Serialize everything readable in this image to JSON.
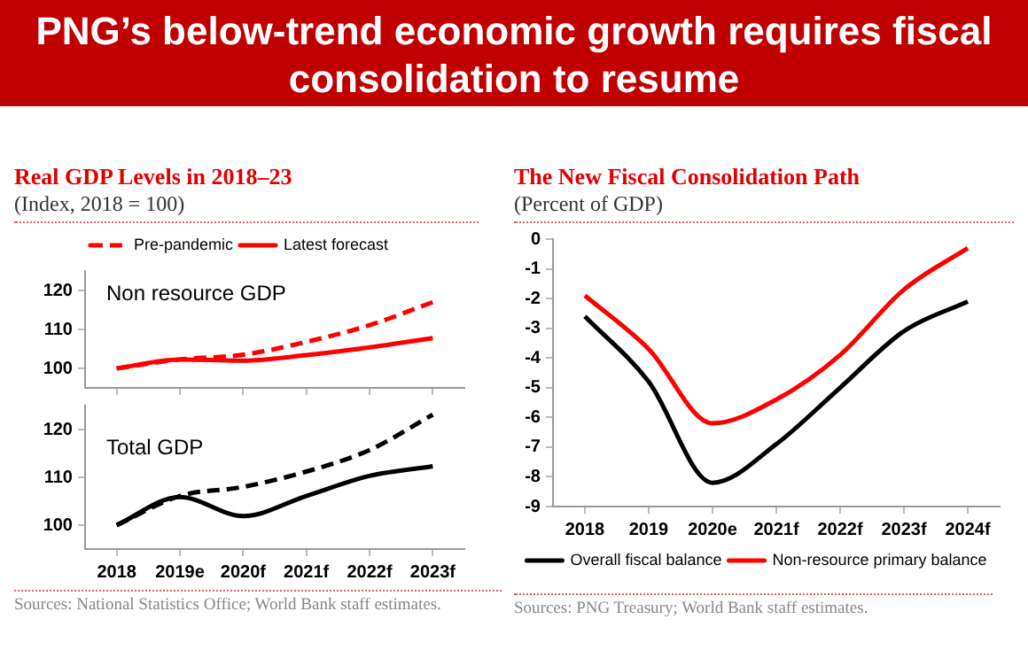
{
  "chart_data": [
    {
      "type": "other",
      "title": "PNG’s below-trend economic growth requires fiscal consolidation to resume"
    },
    {
      "type": "line",
      "title": "Real GDP Levels in 2018–23",
      "subtitle": "(Index, 2018 = 100)",
      "categories": [
        null,
        null,
        null,
        null,
        null,
        null
      ],
      "series": [
        {
          "name": "Pre-pandemic",
          "color": "#ff0000",
          "line_style": "dashed",
          "values": [
            100,
            102.3,
            103.5,
            106.8,
            111.1,
            117
          ]
        },
        {
          "name": "Latest forecast",
          "color": "#ff0000",
          "values": [
            100,
            102.3,
            102,
            103.4,
            105.4,
            107.8
          ]
        }
      ],
      "ylim": [
        95,
        125
      ],
      "yticks": [
        100,
        110,
        120
      ],
      "tick_labels": "y",
      "legend": "top",
      "marker": "none",
      "annotations": [
        "Non resource GDP"
      ]
    },
    {
      "type": "line",
      "categories": [
        "2018",
        "2019e",
        "2020f",
        "2021f",
        "2022f",
        "2023f"
      ],
      "series": [
        {
          "color": "#000000",
          "line_style": "dashed",
          "values": [
            100,
            106.1,
            108,
            111.2,
            115.7,
            123.1
          ]
        },
        {
          "color": "#000000",
          "values": [
            100,
            105.9,
            101.9,
            106.1,
            110.3,
            112.3
          ]
        }
      ],
      "ylim": [
        95,
        125
      ],
      "yticks": [
        100,
        110,
        120
      ],
      "marker": "none",
      "annotations": [
        "Total GDP",
        "Sources: National Statistics Office; World Bank staff estimates."
      ]
    },
    {
      "type": "line",
      "title": "The New Fiscal Consolidation Path",
      "subtitle": "(Percent of GDP)",
      "categories": [
        "2018",
        "2019",
        "2020e",
        "2021f",
        "2022f",
        "2023f",
        "2024f"
      ],
      "series": [
        {
          "name": "Overall fiscal balance",
          "color": "#000000",
          "values": [
            -2.6,
            -4.8,
            -8.2,
            -6.9,
            -5.0,
            -3.1,
            -2.1
          ]
        },
        {
          "name": "Non-resource primary balance",
          "color": "#ff0000",
          "values": [
            -1.9,
            -3.7,
            -6.2,
            -5.4,
            -3.9,
            -1.7,
            -0.3
          ]
        }
      ],
      "ylim": [
        -9,
        0
      ],
      "yticks": [
        0,
        -1,
        -2,
        -3,
        -4,
        -5,
        -6,
        -7,
        -8,
        -9
      ],
      "legend": "bottom",
      "marker": "none",
      "annotations": [
        "Sources: PNG Treasury; World Bank staff estimates."
      ]
    }
  ]
}
